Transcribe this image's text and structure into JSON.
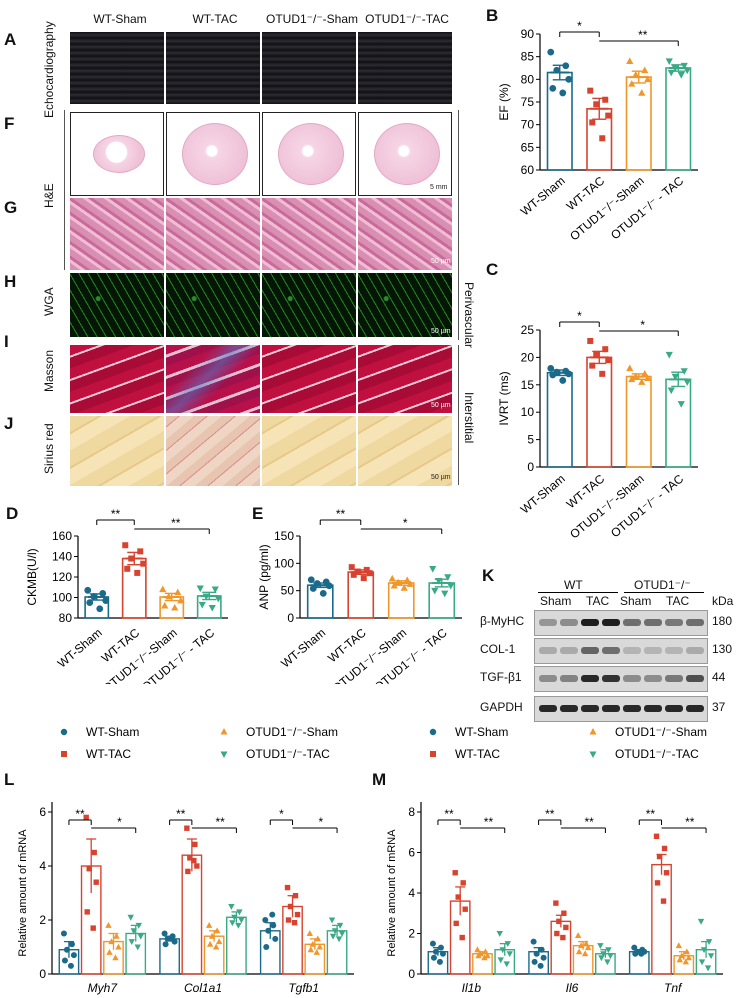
{
  "panel_letters": {
    "A": "A",
    "B": "B",
    "C": "C",
    "D": "D",
    "E": "E",
    "F": "F",
    "G": "G",
    "H": "H",
    "I": "I",
    "J": "J",
    "K": "K",
    "L": "L",
    "M": "M"
  },
  "column_headers": [
    "WT-Sham",
    "WT-TAC",
    "OTUD1⁻/⁻-Sham",
    "OTUD1⁻/⁻-TAC"
  ],
  "row_labels": {
    "echo": "Echocardiography",
    "he": "H&E",
    "wga": "WGA",
    "masson": "Masson",
    "sirius": "Sirius red",
    "perivascular": "Perivascular",
    "interstitial": "Interstitial"
  },
  "scale_bars": {
    "f": "5 mm",
    "g": "50 µm",
    "h": "50 µm",
    "i": "50 µm",
    "j": "50 µm"
  },
  "group_colors": [
    "#1b6a8a",
    "#d8432f",
    "#f0962a",
    "#3aa986"
  ],
  "tick_labels": [
    "WT-Sham",
    "WT-TAC",
    "OTUD1⁻/⁻-Sham",
    "OTUD1⁻/⁻ - TAC"
  ],
  "western": {
    "headers": {
      "wt": "WT",
      "otud1": "OTUD1⁻/⁻",
      "sham1": "Sham",
      "tac1": "TAC",
      "sham2": "Sham",
      "tac2": "TAC",
      "kda": "kDa"
    },
    "bands": [
      {
        "name": "β-MyHC",
        "kda": "180"
      },
      {
        "name": "COL-1",
        "kda": "130"
      },
      {
        "name": "TGF-β1",
        "kda": "44"
      },
      {
        "name": "GAPDH",
        "kda": "37"
      }
    ]
  },
  "chart_data": [
    {
      "id": "B",
      "type": "bar",
      "ylabel": "EF (%)",
      "ylim": [
        60,
        90
      ],
      "yticks": [
        60,
        65,
        70,
        75,
        80,
        85,
        90
      ],
      "categories": [
        "WT-Sham",
        "WT-TAC",
        "OTUD1-/--Sham",
        "OTUD1-/- - TAC"
      ],
      "values": [
        81.5,
        73.5,
        80.5,
        82.5
      ],
      "errors": [
        1.6,
        2.3,
        1.3,
        0.7
      ],
      "points": [
        [
          86,
          83,
          82,
          80,
          78,
          77
        ],
        [
          77.5,
          75.5,
          74.5,
          72,
          70.5,
          67
        ],
        [
          84,
          82,
          81,
          80,
          79,
          77
        ],
        [
          84,
          83,
          82.5,
          82,
          81.5,
          81
        ]
      ],
      "significance": [
        {
          "label": "*",
          "from": 0,
          "to": 1
        },
        {
          "label": "**",
          "from": 1,
          "to": 3
        }
      ]
    },
    {
      "id": "C",
      "type": "bar",
      "ylabel": "IVRT (ms)",
      "ylim": [
        0,
        25
      ],
      "yticks": [
        0,
        5,
        10,
        15,
        20,
        25
      ],
      "categories": [
        "WT-Sham",
        "WT-TAC",
        "OTUD1-/--Sham",
        "OTUD1-/- - TAC"
      ],
      "values": [
        17.2,
        20,
        16.5,
        16
      ],
      "errors": [
        0.5,
        1.1,
        0.5,
        1.3
      ],
      "points": [
        [
          18,
          17.5,
          17.3,
          17,
          16.8,
          15.8
        ],
        [
          23,
          21.5,
          20.5,
          19.5,
          18.5,
          17
        ],
        [
          18,
          17,
          16.5,
          16.2,
          16,
          15.5
        ],
        [
          20.5,
          17.5,
          16.5,
          15.5,
          14,
          11.5
        ]
      ],
      "significance": [
        {
          "label": "*",
          "from": 0,
          "to": 1
        },
        {
          "label": "*",
          "from": 1,
          "to": 3
        }
      ]
    },
    {
      "id": "D",
      "type": "bar",
      "ylabel": "CKMB(U/l)",
      "ylim": [
        80,
        160
      ],
      "yticks": [
        80,
        100,
        120,
        140,
        160
      ],
      "categories": [
        "WT-Sham",
        "WT-TAC",
        "OTUD1-/--Sham",
        "OTUD1-/- - TAC"
      ],
      "values": [
        100.5,
        138,
        100.5,
        101.5
      ],
      "errors": [
        3,
        6,
        3.5,
        3.5
      ],
      "points": [
        [
          107,
          104,
          101,
          97,
          95,
          89
        ],
        [
          151,
          145,
          138,
          133,
          128,
          124
        ],
        [
          108,
          105,
          101,
          97,
          92,
          90
        ],
        [
          109,
          108,
          101,
          99,
          93,
          90
        ]
      ],
      "significance": [
        {
          "label": "**",
          "from": 0,
          "to": 1
        },
        {
          "label": "**",
          "from": 1,
          "to": 3
        }
      ]
    },
    {
      "id": "E",
      "type": "bar",
      "ylabel": "ANP (pg/ml)",
      "ylim": [
        0,
        150
      ],
      "yticks": [
        0,
        50,
        100,
        150
      ],
      "categories": [
        "WT-Sham",
        "WT-TAC",
        "OTUD1-/--Sham",
        "OTUD1-/- - TAC"
      ],
      "values": [
        60,
        84,
        64,
        64
      ],
      "errors": [
        4,
        4,
        4,
        7
      ],
      "points": [
        [
          70,
          66,
          63,
          59,
          54,
          45
        ],
        [
          93,
          88,
          85,
          82,
          79,
          73
        ],
        [
          72,
          69,
          65,
          62,
          59,
          55
        ],
        [
          90,
          75,
          68,
          59,
          50,
          45
        ]
      ],
      "significance": [
        {
          "label": "**",
          "from": 0,
          "to": 1
        },
        {
          "label": "*",
          "from": 1,
          "to": 3
        }
      ]
    },
    {
      "id": "L",
      "type": "grouped-bar",
      "ylabel": "Relative amount of mRNA",
      "ylim": [
        0,
        6
      ],
      "yticks": [
        0,
        2,
        4,
        6
      ],
      "categories": [
        "Myh7",
        "Col1a1",
        "Tgfb1"
      ],
      "legend": [
        "WT-Sham",
        "WT-TAC",
        "OTUD1⁻/⁻-Sham",
        "OTUD1⁻/⁻-TAC"
      ],
      "series": [
        {
          "name": "WT-Sham",
          "values": [
            0.9,
            1.3,
            1.6
          ],
          "errors": [
            0.3,
            0.1,
            0.3
          ],
          "points": [
            [
              1.5,
              1.1,
              0.9,
              0.7,
              0.5,
              0.3
            ],
            [
              1.5,
              1.4,
              1.3,
              1.2,
              1.1,
              1.3
            ],
            [
              2.0,
              1.8,
              1.6,
              1.3,
              1.0,
              2.2
            ]
          ]
        },
        {
          "name": "WT-TAC",
          "values": [
            4,
            4.4,
            2.5
          ],
          "errors": [
            1,
            0.6,
            0.4
          ],
          "points": [
            [
              5.8,
              4.5,
              3.9,
              3.4,
              2.3,
              1.7
            ],
            [
              5.4,
              4.8,
              4.3,
              4.0,
              3.8,
              4.2
            ],
            [
              3.2,
              2.9,
              2.5,
              2.2,
              2.0,
              1.9
            ]
          ]
        },
        {
          "name": "OTUD1-/--Sham",
          "values": [
            1.2,
            1.4,
            1.1
          ],
          "errors": [
            0.3,
            0.2,
            0.2
          ],
          "points": [
            [
              1.8,
              1.4,
              1.2,
              1.0,
              0.8,
              0.6
            ],
            [
              1.8,
              1.6,
              1.4,
              1.2,
              1.1,
              1.0
            ],
            [
              1.5,
              1.3,
              1.1,
              1.0,
              0.9,
              0.8
            ]
          ]
        },
        {
          "name": "OTUD1-/--TAC",
          "values": [
            1.5,
            2.1,
            1.6
          ],
          "errors": [
            0.3,
            0.2,
            0.2
          ],
          "points": [
            [
              2.1,
              1.8,
              1.6,
              1.4,
              1.2,
              1.0
            ],
            [
              2.5,
              2.3,
              2.1,
              2.0,
              1.9,
              1.8
            ],
            [
              2.0,
              1.8,
              1.6,
              1.5,
              1.4,
              1.3
            ]
          ]
        }
      ],
      "significance": [
        {
          "cat": 0,
          "labels": [
            "**",
            "*"
          ]
        },
        {
          "cat": 1,
          "labels": [
            "**",
            "**"
          ]
        },
        {
          "cat": 2,
          "labels": [
            "*",
            "*"
          ]
        }
      ]
    },
    {
      "id": "M",
      "type": "grouped-bar",
      "ylabel": "Relative amount of mRNA",
      "ylim": [
        0,
        8
      ],
      "yticks": [
        0,
        2,
        4,
        6,
        8
      ],
      "categories": [
        "Il1b",
        "Il6",
        "Tnf"
      ],
      "legend": [
        "WT-Sham",
        "WT-TAC",
        "OTUD1⁻/⁻-Sham",
        "OTUD1⁻/⁻-TAC"
      ],
      "series": [
        {
          "name": "WT-Sham",
          "values": [
            1.1,
            1.1,
            1.1
          ],
          "errors": [
            0.2,
            0.2,
            0.1
          ],
          "points": [
            [
              1.5,
              1.3,
              1.1,
              1.0,
              0.8,
              0.6
            ],
            [
              1.6,
              1.2,
              1.0,
              0.8,
              0.6,
              0.4
            ],
            [
              1.3,
              1.2,
              1.1,
              1.1,
              1.0,
              1.0
            ]
          ]
        },
        {
          "name": "WT-TAC",
          "values": [
            3.6,
            2.6,
            5.4
          ],
          "errors": [
            0.7,
            0.3,
            0.5
          ],
          "points": [
            [
              5.0,
              4.5,
              3.8,
              3.2,
              2.5,
              1.8
            ],
            [
              3.5,
              3.0,
              2.6,
              2.3,
              2.0,
              1.8
            ],
            [
              6.8,
              6.2,
              5.8,
              5.0,
              4.5,
              3.6
            ]
          ]
        },
        {
          "name": "OTUD1-/--Sham",
          "values": [
            1.0,
            1.4,
            0.9
          ],
          "errors": [
            0.1,
            0.2,
            0.2
          ],
          "points": [
            [
              1.2,
              1.1,
              1.0,
              0.9,
              0.9,
              0.8
            ],
            [
              1.9,
              1.5,
              1.4,
              1.3,
              1.1,
              1.0
            ],
            [
              1.4,
              1.1,
              0.9,
              0.8,
              0.7,
              0.6
            ]
          ]
        },
        {
          "name": "OTUD1-/--TAC",
          "values": [
            1.2,
            1.0,
            1.2
          ],
          "errors": [
            0.3,
            0.2,
            0.4
          ],
          "points": [
            [
              2.0,
              1.5,
              1.2,
              1.0,
              0.7,
              0.5
            ],
            [
              1.4,
              1.2,
              1.0,
              0.9,
              0.8,
              0.6
            ],
            [
              2.6,
              1.6,
              1.2,
              0.9,
              0.6,
              0.3
            ]
          ]
        }
      ],
      "significance": [
        {
          "cat": 0,
          "labels": [
            "**",
            "**"
          ]
        },
        {
          "cat": 1,
          "labels": [
            "**",
            "**"
          ]
        },
        {
          "cat": 2,
          "labels": [
            "**",
            "**"
          ]
        }
      ]
    }
  ]
}
